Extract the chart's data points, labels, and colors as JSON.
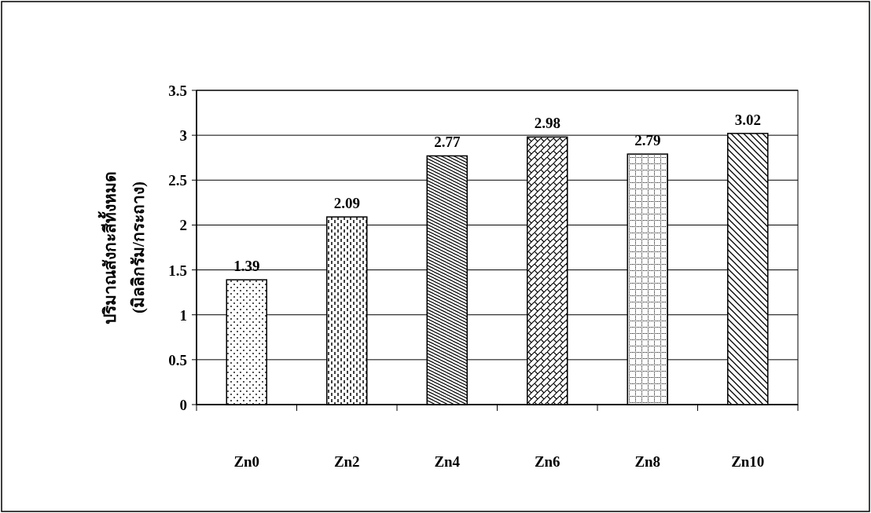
{
  "chart_data": {
    "type": "bar",
    "ylabel": "ปริมาณสังกะสีทั้งหมด\n(มิลลิกรัม/กระถาง)",
    "categories": [
      "Zn0",
      "Zn2",
      "Zn4",
      "Zn6",
      "Zn8",
      "Zn10"
    ],
    "values": [
      1.39,
      2.09,
      2.77,
      2.98,
      2.79,
      3.02
    ],
    "color": "#000000",
    "ylim": [
      0,
      3.5
    ],
    "yticks": [
      0,
      0.5,
      1,
      1.5,
      2,
      2.5,
      3,
      3.5
    ],
    "grid": "y",
    "data_labels": true
  }
}
